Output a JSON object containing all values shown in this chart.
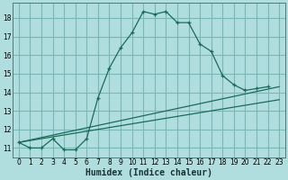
{
  "xlabel": "Humidex (Indice chaleur)",
  "bg_color": "#b0dede",
  "grid_color": "#7ab8b8",
  "line_color": "#1a6b5a",
  "xlim": [
    -0.5,
    23.5
  ],
  "ylim": [
    10.5,
    18.8
  ],
  "yticks": [
    11,
    12,
    13,
    14,
    15,
    16,
    17,
    18
  ],
  "xticks": [
    0,
    1,
    2,
    3,
    4,
    5,
    6,
    7,
    8,
    9,
    10,
    11,
    12,
    13,
    14,
    15,
    16,
    17,
    18,
    19,
    20,
    21,
    22,
    23
  ],
  "main_x": [
    0,
    1,
    2,
    3,
    4,
    5,
    6,
    7,
    8,
    9,
    10,
    11,
    12,
    13,
    14,
    15,
    16,
    17,
    18,
    19,
    20,
    21,
    22
  ],
  "main_y": [
    11.3,
    11.0,
    11.0,
    11.5,
    10.9,
    10.9,
    11.5,
    13.7,
    15.3,
    16.4,
    17.2,
    18.35,
    18.2,
    18.35,
    17.75,
    17.75,
    16.6,
    16.2,
    14.9,
    14.4,
    14.1,
    14.2,
    14.3
  ],
  "line2_x": [
    0,
    23
  ],
  "line2_y": [
    11.3,
    14.3
  ],
  "line3_x": [
    0,
    23
  ],
  "line3_y": [
    11.3,
    13.6
  ],
  "xlabel_fontsize": 7,
  "tick_fontsize": 5.5
}
